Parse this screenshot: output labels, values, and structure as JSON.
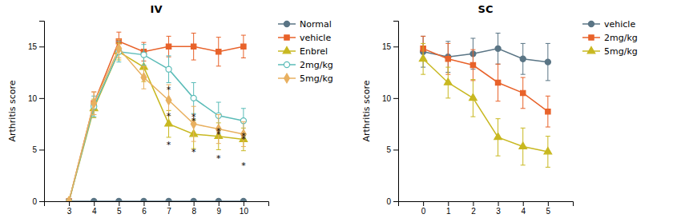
{
  "chart_data": [
    {
      "type": "line",
      "title": "IV",
      "y_label": "Arthritis score",
      "x": [
        3,
        4,
        5,
        6,
        7,
        8,
        9,
        10
      ],
      "xlim": [
        2,
        11
      ],
      "xticks": [
        3,
        4,
        5,
        6,
        7,
        8,
        9,
        10
      ],
      "ylim": [
        0,
        17.5
      ],
      "yticks": [
        0,
        5,
        10,
        15
      ],
      "grid": false,
      "legend": "right",
      "series": [
        {
          "name": "Normal",
          "color": "#5a7585",
          "marker": "circle",
          "values": [
            0,
            0,
            0,
            0,
            0,
            0,
            0,
            0
          ],
          "error": [
            0,
            0,
            0,
            0,
            0,
            0,
            0,
            0
          ]
        },
        {
          "name": "vehicle",
          "color": "#e8622a",
          "marker": "square",
          "values": [
            0,
            9.5,
            15.5,
            14.5,
            15.0,
            15.0,
            14.5,
            15.0
          ],
          "error": [
            0,
            1.1,
            0.9,
            0.9,
            1.0,
            1.3,
            1.4,
            1.1
          ]
        },
        {
          "name": "Enbrel",
          "color": "#c8b820",
          "marker": "triangle",
          "values": [
            0,
            9.0,
            14.5,
            13.0,
            7.5,
            6.5,
            6.3,
            6.0
          ],
          "error": [
            0,
            0.9,
            0.8,
            1.4,
            1.3,
            1.4,
            1.3,
            1.1
          ]
        },
        {
          "name": "2mg/kg",
          "color": "#5bbcb8",
          "marker": "open-circle",
          "values": [
            0,
            9.2,
            14.5,
            14.2,
            12.8,
            10.0,
            8.3,
            7.8
          ],
          "error": [
            0,
            1.0,
            1.0,
            1.0,
            1.3,
            1.5,
            1.3,
            1.2
          ]
        },
        {
          "name": "5mg/kg",
          "color": "#e8b060",
          "marker": "diamond",
          "values": [
            0,
            9.5,
            14.8,
            12.0,
            9.8,
            7.5,
            7.0,
            6.5
          ],
          "error": [
            0,
            1.1,
            0.9,
            1.1,
            1.5,
            1.7,
            1.4,
            1.2
          ]
        }
      ],
      "annotations": [
        {
          "x": 7,
          "y": 10.8,
          "text": "*"
        },
        {
          "x": 7,
          "y": 8.3,
          "text": "*"
        },
        {
          "x": 7,
          "y": 5.5,
          "text": "*"
        },
        {
          "x": 8,
          "y": 8.2,
          "text": "*"
        },
        {
          "x": 8,
          "y": 7.8,
          "text": "*"
        },
        {
          "x": 8,
          "y": 4.8,
          "text": "*"
        },
        {
          "x": 9,
          "y": 6.8,
          "text": "*"
        },
        {
          "x": 9,
          "y": 6.5,
          "text": "*"
        },
        {
          "x": 9,
          "y": 4.2,
          "text": "*"
        },
        {
          "x": 10,
          "y": 6.3,
          "text": "*"
        },
        {
          "x": 10,
          "y": 6.0,
          "text": "*"
        },
        {
          "x": 10,
          "y": 3.5,
          "text": "*"
        }
      ]
    },
    {
      "type": "line",
      "title": "SC",
      "y_label": "Arthritis score",
      "x": [
        0,
        1,
        2,
        3,
        4,
        5
      ],
      "xlim": [
        -1,
        6
      ],
      "xticks": [
        0,
        1,
        2,
        3,
        4,
        5
      ],
      "ylim": [
        0,
        17.5
      ],
      "yticks": [
        0,
        5,
        10,
        15
      ],
      "grid": false,
      "legend": "right",
      "series": [
        {
          "name": "vehicle",
          "color": "#5a7585",
          "marker": "circle",
          "values": [
            14.5,
            14.0,
            14.3,
            14.8,
            13.8,
            13.5
          ],
          "error": [
            1.5,
            1.5,
            1.5,
            1.5,
            1.5,
            1.8
          ]
        },
        {
          "name": "2mg/kg",
          "color": "#e8622a",
          "marker": "square",
          "values": [
            14.8,
            13.8,
            13.2,
            11.5,
            10.5,
            8.7
          ],
          "error": [
            1.2,
            1.5,
            1.5,
            1.8,
            1.5,
            1.5
          ]
        },
        {
          "name": "5mg/kg",
          "color": "#c8b820",
          "marker": "triangle",
          "values": [
            13.8,
            11.5,
            10.0,
            6.2,
            5.3,
            4.8
          ],
          "error": [
            1.5,
            1.5,
            1.8,
            1.8,
            1.8,
            1.5
          ]
        }
      ]
    }
  ]
}
